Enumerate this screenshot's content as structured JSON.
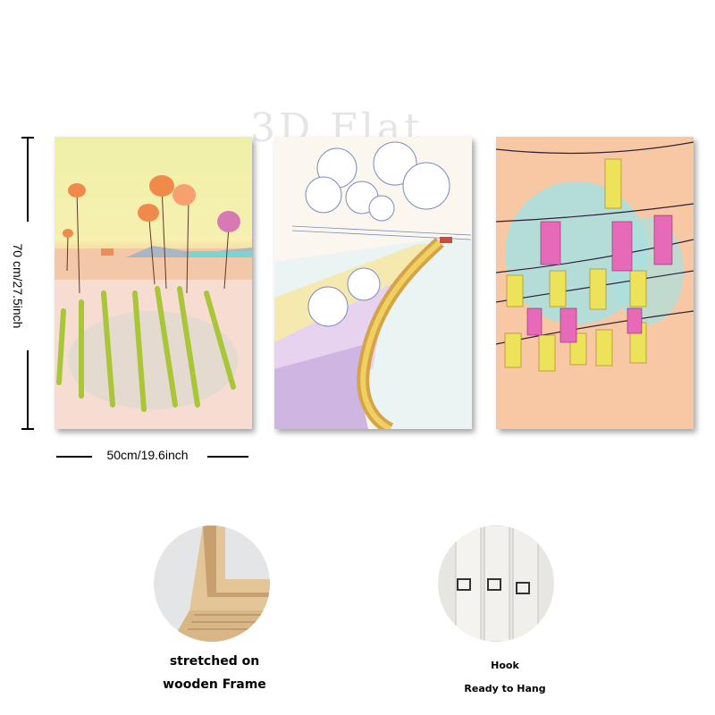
{
  "watermark": "3D Flat",
  "dimensions": {
    "height": "70 cm/27.5inch",
    "width": "50cm/19.6inch"
  },
  "panels": [
    {
      "theme": "flowers-field"
    },
    {
      "theme": "hibiscus-road"
    },
    {
      "theme": "hanging-lanterns"
    }
  ],
  "features": {
    "frame": {
      "line1": "stretched on",
      "line2": "wooden Frame"
    },
    "hook": {
      "line1": "Hook",
      "line2": "Ready to Hang"
    }
  }
}
